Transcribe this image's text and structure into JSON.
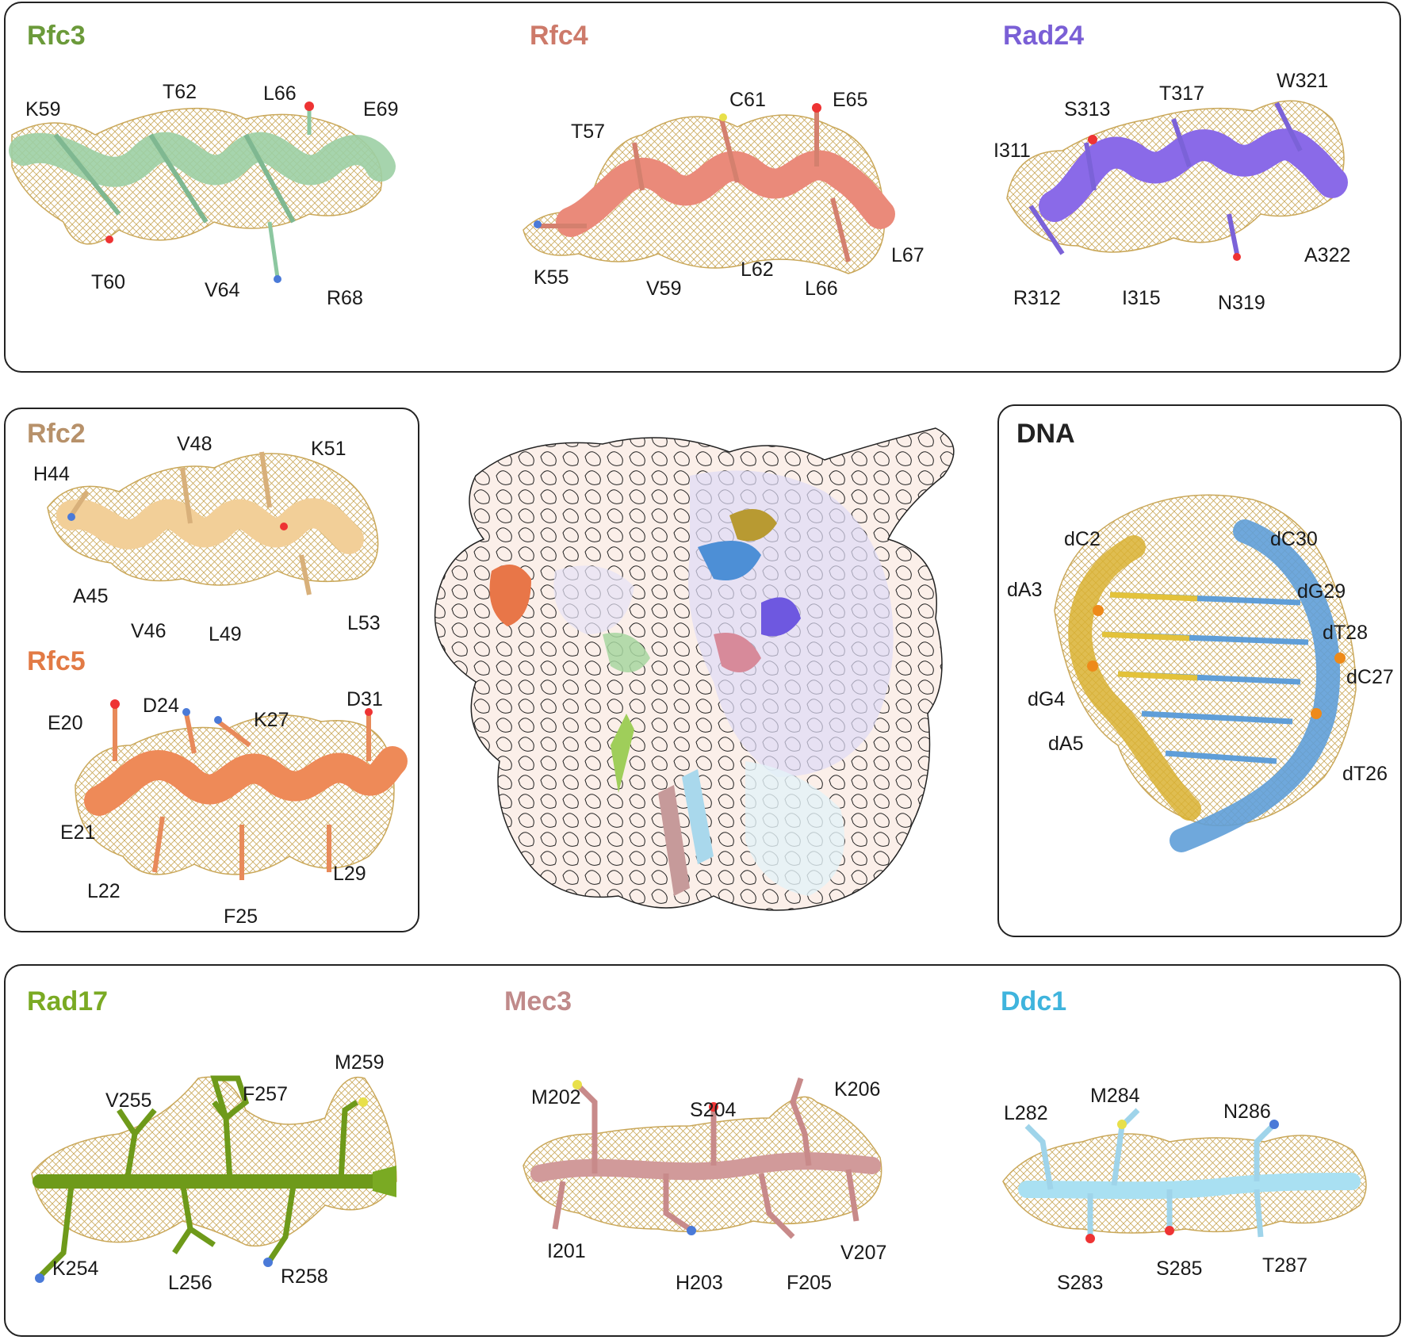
{
  "colors": {
    "rfc3": "#6b9a3a",
    "rfc4": "#cd7a6a",
    "rad24": "#7a5fd6",
    "rfc2": "#b7916a",
    "rfc5": "#e27a45",
    "dna": "#222222",
    "rad17": "#7aaa23",
    "mec3": "#c08a8a",
    "ddc1": "#3fb4dd",
    "mesh": "#caa85a"
  },
  "panels": {
    "rfc3": {
      "title": "Rfc3",
      "labels": [
        "K59",
        "T62",
        "L66",
        "E69",
        "T60",
        "V64",
        "R68"
      ]
    },
    "rfc4": {
      "title": "Rfc4",
      "labels": [
        "T57",
        "C61",
        "E65",
        "K55",
        "V59",
        "L62",
        "L66",
        "L67"
      ]
    },
    "rad24": {
      "title": "Rad24",
      "labels": [
        "I311",
        "S313",
        "T317",
        "W321",
        "R312",
        "I315",
        "N319",
        "A322"
      ]
    },
    "rfc2": {
      "title": "Rfc2",
      "labels": [
        "H44",
        "V48",
        "K51",
        "A45",
        "V46",
        "L49",
        "L53"
      ]
    },
    "rfc5": {
      "title": "Rfc5",
      "labels": [
        "E20",
        "D24",
        "K27",
        "D31",
        "E21",
        "L22",
        "F25",
        "L29"
      ]
    },
    "dna": {
      "title": "DNA",
      "labels": [
        "dC2",
        "dC30",
        "dA3",
        "dG29",
        "dT28",
        "dC27",
        "dG4",
        "dA5",
        "dT26"
      ]
    },
    "rad17": {
      "title": "Rad17",
      "labels": [
        "V255",
        "F257",
        "M259",
        "K254",
        "L256",
        "R258"
      ]
    },
    "mec3": {
      "title": "Mec3",
      "labels": [
        "M202",
        "S204",
        "K206",
        "I201",
        "H203",
        "F205",
        "V207"
      ]
    },
    "ddc1": {
      "title": "Ddc1",
      "labels": [
        "L282",
        "M284",
        "N286",
        "S283",
        "S285",
        "T287"
      ]
    }
  }
}
